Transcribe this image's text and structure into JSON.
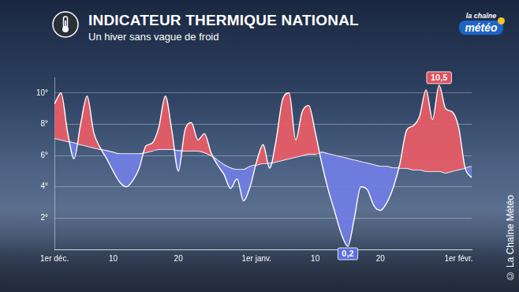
{
  "chart_data": {
    "type": "line",
    "title": "INDICATEUR THERMIQUE NATIONAL",
    "subtitle": "Un hiver sans vague de froid",
    "logo": {
      "line1": "la chaîne",
      "line2": "météo"
    },
    "source": "© La Chaîne Météo",
    "categories": [
      "1er déc.",
      null,
      null,
      null,
      null,
      null,
      null,
      null,
      null,
      "10",
      null,
      null,
      null,
      null,
      null,
      null,
      null,
      null,
      null,
      "20",
      null,
      null,
      null,
      null,
      null,
      null,
      null,
      null,
      null,
      null,
      null,
      "1er janv.",
      null,
      null,
      null,
      null,
      null,
      null,
      null,
      null,
      "10",
      null,
      null,
      null,
      null,
      null,
      null,
      null,
      null,
      null,
      "20",
      null,
      null,
      null,
      null,
      null,
      null,
      null,
      null,
      null,
      null,
      null,
      "1er févr.",
      null,
      null
    ],
    "series": [
      {
        "color": "#ffffff",
        "values": [
          9.3,
          10.0,
          7.5,
          5.8,
          8.0,
          9.8,
          7.5,
          6.5,
          5.8,
          5.0,
          4.3,
          4.0,
          4.4,
          5.2,
          6.6,
          6.8,
          7.8,
          9.8,
          7.6,
          5.0,
          7.6,
          8.1,
          7.0,
          7.4,
          6.2,
          5.4,
          4.8,
          3.9,
          4.5,
          3.1,
          4.0,
          5.6,
          6.7,
          5.2,
          7.0,
          9.6,
          10.0,
          7.0,
          8.8,
          9.2,
          7.5,
          5.5,
          3.8,
          2.4,
          1.0,
          0.2,
          2.0,
          4.0,
          3.8,
          2.8,
          2.5,
          3.0,
          4.0,
          5.5,
          7.6,
          7.9,
          8.5,
          10.2,
          8.3,
          10.5,
          9.0,
          8.8,
          7.8,
          5.2,
          4.6
        ],
        "value_labels": [
          null,
          null,
          null,
          null,
          null,
          null,
          null,
          null,
          null,
          null,
          null,
          null,
          null,
          null,
          null,
          null,
          null,
          null,
          null,
          null,
          null,
          null,
          null,
          null,
          null,
          null,
          null,
          null,
          null,
          null,
          null,
          null,
          null,
          null,
          null,
          null,
          null,
          null,
          null,
          null,
          null,
          null,
          null,
          null,
          null,
          "0,2",
          null,
          null,
          null,
          null,
          null,
          null,
          null,
          null,
          null,
          null,
          null,
          null,
          null,
          "10,5",
          null,
          null,
          null,
          null,
          null
        ]
      },
      {
        "color": "#ffffff",
        "values": [
          7.1,
          7.0,
          6.9,
          6.8,
          6.7,
          6.6,
          6.5,
          6.4,
          6.3,
          6.2,
          6.1,
          6.1,
          6.1,
          6.1,
          6.2,
          6.3,
          6.4,
          6.4,
          6.4,
          6.3,
          6.3,
          6.3,
          6.3,
          6.2,
          6.0,
          5.7,
          5.4,
          5.2,
          5.1,
          5.1,
          5.3,
          5.4,
          5.5,
          5.5,
          5.6,
          5.7,
          5.8,
          5.9,
          6.0,
          6.1,
          6.1,
          6.2,
          6.1,
          6.0,
          5.9,
          5.8,
          5.7,
          5.6,
          5.5,
          5.4,
          5.3,
          5.3,
          5.2,
          5.2,
          5.2,
          5.1,
          5.1,
          5.0,
          5.0,
          5.0,
          4.9,
          5.0,
          5.1,
          5.2,
          5.3
        ]
      }
    ],
    "ylim": [
      0,
      11
    ],
    "yticks": [
      {
        "value": 2,
        "label": "2°"
      },
      {
        "value": 4,
        "label": "4°"
      },
      {
        "value": 6,
        "label": "6°"
      },
      {
        "value": 8,
        "label": "8°"
      },
      {
        "value": 10,
        "label": "10°"
      }
    ],
    "grid": "y"
  }
}
